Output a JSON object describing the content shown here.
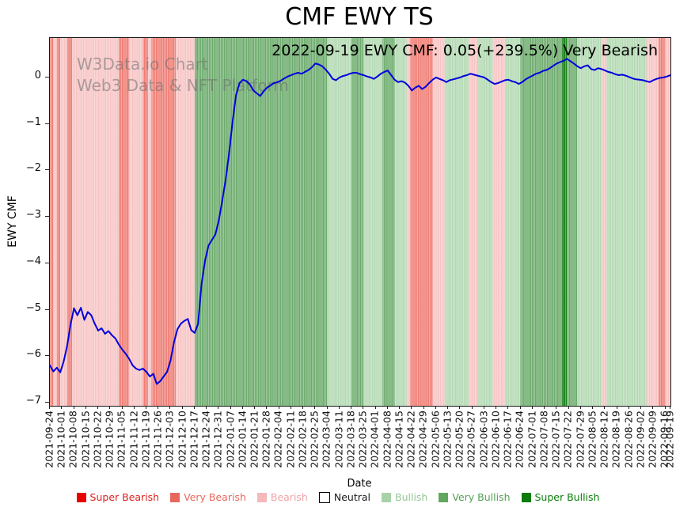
{
  "title": "CMF EWY TS",
  "annotation": "2022-09-19 EWY CMF: 0.05(+239.5%) Very Bearish",
  "watermark": {
    "line1": "W3Data.io Chart",
    "line2": "Web3 Data & NFT Platform"
  },
  "axes": {
    "x_label": "Date",
    "y_label": "EWY CMF",
    "y_tick_labels": [
      "0",
      "−1",
      "−2",
      "−3",
      "−4",
      "−5",
      "−6",
      "−7"
    ],
    "x_ticks": [
      "2021-09-24",
      "2021-10-01",
      "2021-10-08",
      "2021-10-15",
      "2021-10-22",
      "2021-10-29",
      "2021-11-05",
      "2021-11-12",
      "2021-11-19",
      "2021-11-26",
      "2021-12-03",
      "2021-12-10",
      "2021-12-17",
      "2021-12-24",
      "2021-12-31",
      "2022-01-07",
      "2022-01-14",
      "2022-01-21",
      "2022-01-28",
      "2022-02-04",
      "2022-02-11",
      "2022-02-18",
      "2022-02-25",
      "2022-03-04",
      "2022-03-11",
      "2022-03-18",
      "2022-03-25",
      "2022-04-01",
      "2022-04-08",
      "2022-04-15",
      "2022-04-22",
      "2022-04-29",
      "2022-05-06",
      "2022-05-13",
      "2022-05-20",
      "2022-05-27",
      "2022-06-03",
      "2022-06-10",
      "2022-06-17",
      "2022-06-24",
      "2022-07-01",
      "2022-07-08",
      "2022-07-15",
      "2022-07-22",
      "2022-07-29",
      "2022-08-05",
      "2022-08-12",
      "2022-08-19",
      "2022-08-26",
      "2022-09-02",
      "2022-09-09",
      "2022-09-16",
      "2022-09-19"
    ]
  },
  "legend": {
    "items": [
      {
        "label": "Super Bearish",
        "color": "#e60000",
        "text_color": "#e02020"
      },
      {
        "label": "Very Bearish",
        "color": "#e8685e",
        "text_color": "#e8685e"
      },
      {
        "label": "Bearish",
        "color": "#f5b8bb",
        "text_color": "#f0a3a8"
      },
      {
        "label": "Neutral",
        "color": "#ffffff",
        "border": "#000000",
        "text_color": "#1a1a1a"
      },
      {
        "label": "Bullish",
        "color": "#a8d2a8",
        "text_color": "#96c796"
      },
      {
        "label": "Very Bullish",
        "color": "#61a761",
        "text_color": "#55a055"
      },
      {
        "label": "Super Bullish",
        "color": "#0c7c0c",
        "text_color": "#0a800a"
      }
    ]
  },
  "chart_data": {
    "type": "line",
    "title": "CMF EWY TS",
    "xlabel": "Date",
    "ylabel": "EWY CMF",
    "x_start": "2021-09-24",
    "x_end": "2022-09-19",
    "ylim": [
      -7.07,
      0.85
    ],
    "y_ticks": [
      0,
      -1,
      -2,
      -3,
      -4,
      -5,
      -6,
      -7
    ],
    "line_color": "#0000dd",
    "latest": {
      "date": "2022-09-19",
      "value": 0.05,
      "change_pct": "+239.5%",
      "signal": "Very Bearish"
    },
    "band_colors": {
      "super_bearish": "#e60000",
      "very_bearish": "#ef7d74",
      "bearish": "#f7c4c4",
      "neutral": "#ffffff",
      "bullish": "#b3d9b3",
      "very_bullish": "#6cab6c",
      "super_bullish": "#157f15"
    },
    "bands": [
      [
        "2021-09-24",
        "2021-09-26",
        "very_bearish"
      ],
      [
        "2021-09-26",
        "2021-09-28",
        "bearish"
      ],
      [
        "2021-09-28",
        "2021-09-30",
        "very_bearish"
      ],
      [
        "2021-09-30",
        "2021-10-04",
        "bearish"
      ],
      [
        "2021-10-04",
        "2021-10-07",
        "very_bearish"
      ],
      [
        "2021-10-07",
        "2021-11-03",
        "bearish"
      ],
      [
        "2021-11-03",
        "2021-11-09",
        "very_bearish"
      ],
      [
        "2021-11-09",
        "2021-11-17",
        "bearish"
      ],
      [
        "2021-11-17",
        "2021-11-20",
        "very_bearish"
      ],
      [
        "2021-11-20",
        "2021-11-22",
        "bearish"
      ],
      [
        "2021-11-22",
        "2021-12-06",
        "very_bearish"
      ],
      [
        "2021-12-06",
        "2021-12-17",
        "bearish"
      ],
      [
        "2021-12-17",
        "2022-03-04",
        "very_bullish"
      ],
      [
        "2022-03-04",
        "2022-03-18",
        "bullish"
      ],
      [
        "2022-03-18",
        "2022-03-25",
        "very_bullish"
      ],
      [
        "2022-03-25",
        "2022-04-05",
        "bullish"
      ],
      [
        "2022-04-05",
        "2022-04-12",
        "very_bullish"
      ],
      [
        "2022-04-12",
        "2022-04-19",
        "bullish"
      ],
      [
        "2022-04-19",
        "2022-04-21",
        "bearish"
      ],
      [
        "2022-04-21",
        "2022-05-04",
        "very_bearish"
      ],
      [
        "2022-05-04",
        "2022-05-11",
        "bearish"
      ],
      [
        "2022-05-11",
        "2022-05-25",
        "bullish"
      ],
      [
        "2022-05-25",
        "2022-05-30",
        "bearish"
      ],
      [
        "2022-05-30",
        "2022-06-08",
        "bullish"
      ],
      [
        "2022-06-08",
        "2022-06-15",
        "bearish"
      ],
      [
        "2022-06-15",
        "2022-06-24",
        "bullish"
      ],
      [
        "2022-06-24",
        "2022-07-18",
        "very_bullish"
      ],
      [
        "2022-07-18",
        "2022-07-21",
        "super_bullish"
      ],
      [
        "2022-07-21",
        "2022-07-27",
        "very_bullish"
      ],
      [
        "2022-07-27",
        "2022-08-10",
        "bullish"
      ],
      [
        "2022-08-10",
        "2022-08-13",
        "bearish"
      ],
      [
        "2022-08-13",
        "2022-09-05",
        "bullish"
      ],
      [
        "2022-09-05",
        "2022-09-12",
        "bearish"
      ],
      [
        "2022-09-12",
        "2022-09-16",
        "very_bearish"
      ],
      [
        "2022-09-16",
        "2022-09-19",
        "bearish"
      ]
    ],
    "series": [
      {
        "name": "EWY CMF",
        "points": [
          [
            "2021-09-24",
            -6.2
          ],
          [
            "2021-09-26",
            -6.33
          ],
          [
            "2021-09-28",
            -6.25
          ],
          [
            "2021-09-30",
            -6.35
          ],
          [
            "2021-10-02",
            -6.12
          ],
          [
            "2021-10-04",
            -5.78
          ],
          [
            "2021-10-06",
            -5.32
          ],
          [
            "2021-10-08",
            -4.97
          ],
          [
            "2021-10-10",
            -5.12
          ],
          [
            "2021-10-12",
            -4.96
          ],
          [
            "2021-10-14",
            -5.22
          ],
          [
            "2021-10-16",
            -5.05
          ],
          [
            "2021-10-18",
            -5.12
          ],
          [
            "2021-10-20",
            -5.3
          ],
          [
            "2021-10-22",
            -5.45
          ],
          [
            "2021-10-24",
            -5.4
          ],
          [
            "2021-10-26",
            -5.52
          ],
          [
            "2021-10-28",
            -5.46
          ],
          [
            "2021-10-30",
            -5.55
          ],
          [
            "2021-11-01",
            -5.62
          ],
          [
            "2021-11-03",
            -5.75
          ],
          [
            "2021-11-05",
            -5.86
          ],
          [
            "2021-11-07",
            -5.95
          ],
          [
            "2021-11-09",
            -6.06
          ],
          [
            "2021-11-11",
            -6.2
          ],
          [
            "2021-11-13",
            -6.27
          ],
          [
            "2021-11-15",
            -6.3
          ],
          [
            "2021-11-17",
            -6.27
          ],
          [
            "2021-11-19",
            -6.34
          ],
          [
            "2021-11-21",
            -6.44
          ],
          [
            "2021-11-23",
            -6.38
          ],
          [
            "2021-11-25",
            -6.6
          ],
          [
            "2021-11-27",
            -6.54
          ],
          [
            "2021-11-29",
            -6.44
          ],
          [
            "2021-12-01",
            -6.34
          ],
          [
            "2021-12-03",
            -6.1
          ],
          [
            "2021-12-05",
            -5.7
          ],
          [
            "2021-12-07",
            -5.42
          ],
          [
            "2021-12-09",
            -5.3
          ],
          [
            "2021-12-11",
            -5.24
          ],
          [
            "2021-12-13",
            -5.2
          ],
          [
            "2021-12-15",
            -5.44
          ],
          [
            "2021-12-17",
            -5.5
          ],
          [
            "2021-12-19",
            -5.3
          ],
          [
            "2021-12-21",
            -4.45
          ],
          [
            "2021-12-23",
            -3.95
          ],
          [
            "2021-12-25",
            -3.62
          ],
          [
            "2021-12-27",
            -3.5
          ],
          [
            "2021-12-29",
            -3.38
          ],
          [
            "2021-12-31",
            -3.08
          ],
          [
            "2022-01-02",
            -2.65
          ],
          [
            "2022-01-04",
            -2.2
          ],
          [
            "2022-01-06",
            -1.62
          ],
          [
            "2022-01-08",
            -0.95
          ],
          [
            "2022-01-10",
            -0.38
          ],
          [
            "2022-01-12",
            -0.12
          ],
          [
            "2022-01-14",
            -0.05
          ],
          [
            "2022-01-16",
            -0.08
          ],
          [
            "2022-01-18",
            -0.15
          ],
          [
            "2022-01-20",
            -0.28
          ],
          [
            "2022-01-22",
            -0.34
          ],
          [
            "2022-01-24",
            -0.4
          ],
          [
            "2022-01-26",
            -0.3
          ],
          [
            "2022-01-28",
            -0.22
          ],
          [
            "2022-01-30",
            -0.17
          ],
          [
            "2022-02-01",
            -0.12
          ],
          [
            "2022-02-03",
            -0.1
          ],
          [
            "2022-02-05",
            -0.07
          ],
          [
            "2022-02-07",
            -0.02
          ],
          [
            "2022-02-09",
            0.02
          ],
          [
            "2022-02-11",
            0.05
          ],
          [
            "2022-02-13",
            0.08
          ],
          [
            "2022-02-15",
            0.1
          ],
          [
            "2022-02-17",
            0.08
          ],
          [
            "2022-02-19",
            0.12
          ],
          [
            "2022-02-21",
            0.16
          ],
          [
            "2022-02-23",
            0.22
          ],
          [
            "2022-02-25",
            0.3
          ],
          [
            "2022-02-27",
            0.28
          ],
          [
            "2022-03-01",
            0.24
          ],
          [
            "2022-03-03",
            0.17
          ],
          [
            "2022-03-05",
            0.08
          ],
          [
            "2022-03-07",
            -0.03
          ],
          [
            "2022-03-09",
            -0.06
          ],
          [
            "2022-03-11",
            0.0
          ],
          [
            "2022-03-13",
            0.03
          ],
          [
            "2022-03-15",
            0.05
          ],
          [
            "2022-03-17",
            0.08
          ],
          [
            "2022-03-19",
            0.1
          ],
          [
            "2022-03-21",
            0.1
          ],
          [
            "2022-03-23",
            0.07
          ],
          [
            "2022-03-25",
            0.05
          ],
          [
            "2022-03-27",
            0.02
          ],
          [
            "2022-03-29",
            0.0
          ],
          [
            "2022-03-31",
            -0.03
          ],
          [
            "2022-04-02",
            0.02
          ],
          [
            "2022-04-04",
            0.08
          ],
          [
            "2022-04-06",
            0.12
          ],
          [
            "2022-04-08",
            0.15
          ],
          [
            "2022-04-10",
            0.05
          ],
          [
            "2022-04-12",
            -0.05
          ],
          [
            "2022-04-14",
            -0.1
          ],
          [
            "2022-04-16",
            -0.08
          ],
          [
            "2022-04-18",
            -0.11
          ],
          [
            "2022-04-20",
            -0.18
          ],
          [
            "2022-04-22",
            -0.28
          ],
          [
            "2022-04-24",
            -0.22
          ],
          [
            "2022-04-26",
            -0.18
          ],
          [
            "2022-04-28",
            -0.25
          ],
          [
            "2022-04-30",
            -0.2
          ],
          [
            "2022-05-02",
            -0.12
          ],
          [
            "2022-05-04",
            -0.05
          ],
          [
            "2022-05-06",
            0.0
          ],
          [
            "2022-05-08",
            -0.03
          ],
          [
            "2022-05-10",
            -0.06
          ],
          [
            "2022-05-12",
            -0.1
          ],
          [
            "2022-05-14",
            -0.06
          ],
          [
            "2022-05-16",
            -0.04
          ],
          [
            "2022-05-18",
            -0.02
          ],
          [
            "2022-05-20",
            0.0
          ],
          [
            "2022-05-22",
            0.03
          ],
          [
            "2022-05-24",
            0.05
          ],
          [
            "2022-05-26",
            0.08
          ],
          [
            "2022-05-28",
            0.06
          ],
          [
            "2022-05-30",
            0.04
          ],
          [
            "2022-06-01",
            0.02
          ],
          [
            "2022-06-03",
            0.0
          ],
          [
            "2022-06-05",
            -0.05
          ],
          [
            "2022-06-07",
            -0.1
          ],
          [
            "2022-06-09",
            -0.14
          ],
          [
            "2022-06-11",
            -0.12
          ],
          [
            "2022-06-13",
            -0.09
          ],
          [
            "2022-06-15",
            -0.06
          ],
          [
            "2022-06-17",
            -0.05
          ],
          [
            "2022-06-19",
            -0.08
          ],
          [
            "2022-06-21",
            -0.1
          ],
          [
            "2022-06-23",
            -0.14
          ],
          [
            "2022-06-25",
            -0.1
          ],
          [
            "2022-06-27",
            -0.04
          ],
          [
            "2022-06-29",
            0.0
          ],
          [
            "2022-07-01",
            0.04
          ],
          [
            "2022-07-03",
            0.08
          ],
          [
            "2022-07-05",
            0.1
          ],
          [
            "2022-07-07",
            0.14
          ],
          [
            "2022-07-09",
            0.16
          ],
          [
            "2022-07-11",
            0.2
          ],
          [
            "2022-07-13",
            0.25
          ],
          [
            "2022-07-15",
            0.3
          ],
          [
            "2022-07-17",
            0.33
          ],
          [
            "2022-07-19",
            0.36
          ],
          [
            "2022-07-21",
            0.4
          ],
          [
            "2022-07-23",
            0.35
          ],
          [
            "2022-07-25",
            0.3
          ],
          [
            "2022-07-27",
            0.24
          ],
          [
            "2022-07-29",
            0.2
          ],
          [
            "2022-07-31",
            0.24
          ],
          [
            "2022-08-02",
            0.26
          ],
          [
            "2022-08-04",
            0.18
          ],
          [
            "2022-08-06",
            0.16
          ],
          [
            "2022-08-08",
            0.2
          ],
          [
            "2022-08-10",
            0.18
          ],
          [
            "2022-08-12",
            0.15
          ],
          [
            "2022-08-14",
            0.12
          ],
          [
            "2022-08-16",
            0.1
          ],
          [
            "2022-08-18",
            0.07
          ],
          [
            "2022-08-20",
            0.05
          ],
          [
            "2022-08-22",
            0.06
          ],
          [
            "2022-08-24",
            0.04
          ],
          [
            "2022-08-26",
            0.01
          ],
          [
            "2022-08-28",
            -0.02
          ],
          [
            "2022-08-30",
            -0.04
          ],
          [
            "2022-09-01",
            -0.05
          ],
          [
            "2022-09-03",
            -0.06
          ],
          [
            "2022-09-05",
            -0.08
          ],
          [
            "2022-09-07",
            -0.1
          ],
          [
            "2022-09-09",
            -0.06
          ],
          [
            "2022-09-11",
            -0.03
          ],
          [
            "2022-09-13",
            -0.01
          ],
          [
            "2022-09-15",
            0.0
          ],
          [
            "2022-09-17",
            0.02
          ],
          [
            "2022-09-19",
            0.05
          ]
        ]
      }
    ]
  }
}
